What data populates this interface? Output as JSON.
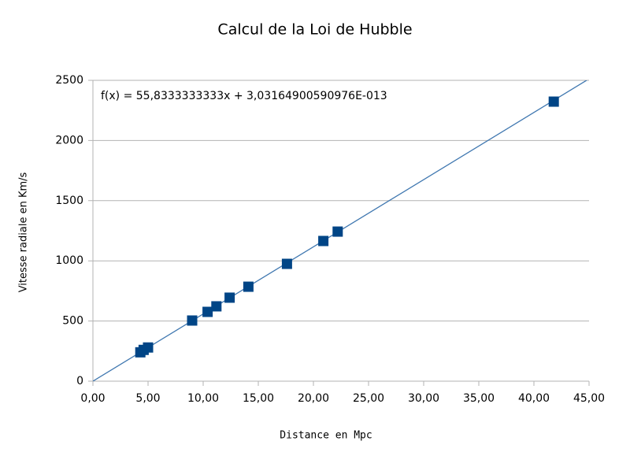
{
  "chart_data": {
    "type": "scatter",
    "title": "Calcul de la Loi de Hubble",
    "x_label": "Distance en Mpc",
    "y_label": "Vitesse radiale en Km/s",
    "series": [
      {
        "name": "Vitesse radiale",
        "color": "#004586",
        "x": [
          4.3,
          4.6,
          5.0,
          9.0,
          10.4,
          11.2,
          12.4,
          14.1,
          17.6,
          20.9,
          22.2,
          41.8
        ],
        "values": [
          240,
          260,
          280,
          504,
          576,
          622,
          694,
          785,
          975,
          1165,
          1243,
          2323
        ]
      }
    ],
    "trendline": {
      "label": "f(x) = 55,8333333333x + 3,03164900590976E-013",
      "slope": 55.8333333333,
      "intercept": 3.03164900590976e-13,
      "color": "#3f77b0"
    },
    "xlim": [
      0,
      45
    ],
    "ylim": [
      0,
      2500
    ],
    "xticks": [
      {
        "value": 0,
        "label": "0,00"
      },
      {
        "value": 5,
        "label": "5,00"
      },
      {
        "value": 10,
        "label": "10,00"
      },
      {
        "value": 15,
        "label": "15,00"
      },
      {
        "value": 20,
        "label": "20,00"
      },
      {
        "value": 25,
        "label": "25,00"
      },
      {
        "value": 30,
        "label": "30,00"
      },
      {
        "value": 35,
        "label": "35,00"
      },
      {
        "value": 40,
        "label": "40,00"
      },
      {
        "value": 45,
        "label": "45,00"
      }
    ],
    "yticks": [
      0,
      500,
      1000,
      1500,
      2000,
      2500
    ],
    "grid": true
  }
}
